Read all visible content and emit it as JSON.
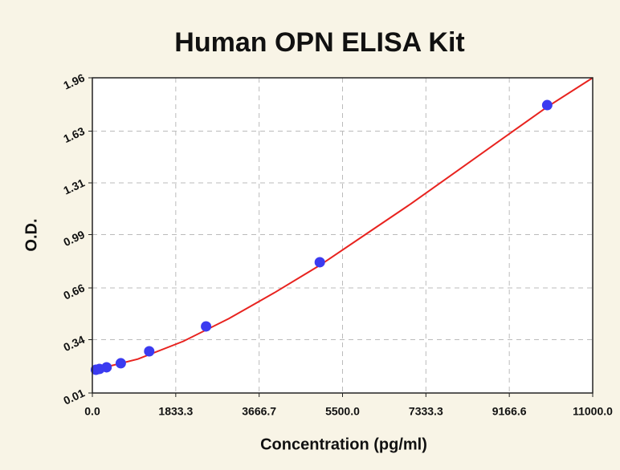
{
  "chart_data": {
    "type": "scatter",
    "title": "Human OPN ELISA Kit",
    "x_label": "Concentration (pg/ml)",
    "y_label": "O.D.",
    "xlim": [
      0,
      11000
    ],
    "ylim": [
      0.01,
      1.96
    ],
    "xticks": [
      {
        "value": 0,
        "label": "0.0"
      },
      {
        "value": 1833.3,
        "label": "1833.3"
      },
      {
        "value": 3666.7,
        "label": "3666.7"
      },
      {
        "value": 5500,
        "label": "5500.0"
      },
      {
        "value": 7333.3,
        "label": "7333.3"
      },
      {
        "value": 9166.6,
        "label": "9166.6"
      },
      {
        "value": 11000,
        "label": "11000.0"
      }
    ],
    "yticks": [
      0.01,
      0.34,
      0.66,
      0.99,
      1.31,
      1.63,
      1.96
    ],
    "grid": true,
    "points": {
      "color": "#3b3bf0",
      "x": [
        78.125,
        156.25,
        312.5,
        625,
        1250,
        2500,
        5000,
        10000
      ],
      "y": [
        0.154,
        0.159,
        0.169,
        0.194,
        0.268,
        0.422,
        0.819,
        1.791
      ]
    },
    "fit": {
      "color": "#e8231f",
      "x": [
        0,
        1000,
        2000,
        3000,
        4000,
        5000,
        6000,
        7000,
        8000,
        9000,
        10000,
        11000
      ],
      "y": [
        0.15,
        0.22,
        0.33,
        0.47,
        0.63,
        0.8,
        0.99,
        1.18,
        1.38,
        1.58,
        1.78,
        1.96
      ]
    }
  }
}
